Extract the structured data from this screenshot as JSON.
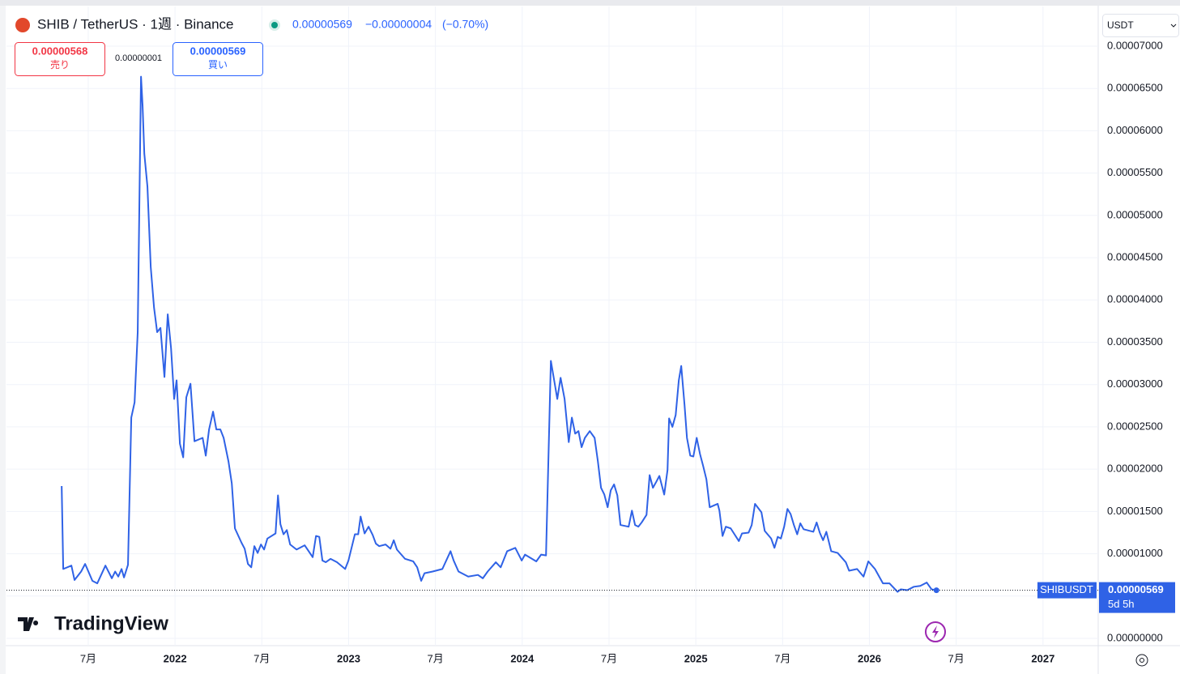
{
  "header": {
    "symbol": "SHIB / TetherUS · 1週 · Binance",
    "price": "0.00000569",
    "change": "−0.00000004",
    "change_pct": "(−0.70%)",
    "sell_price": "0.00000568",
    "sell": "売り",
    "spread": "0.00000001",
    "buy_price": "0.00000569",
    "buy": "買い",
    "currency": "USDT"
  },
  "price_label": {
    "symbol": "SHIBUSDT",
    "price": "0.00000569",
    "countdown": "5d 5h"
  },
  "logo": "TradingView",
  "chart_data": {
    "type": "line",
    "xlim": [
      2021.029,
      2027.318
    ],
    "xticks": [
      {
        "value": 2021.5,
        "label": "7月"
      },
      2022,
      {
        "value": 2022.5,
        "label": "7月"
      },
      2023,
      {
        "value": 2023.5,
        "label": "7月"
      },
      2024,
      {
        "value": 2024.5,
        "label": "7月"
      },
      2025,
      {
        "value": 2025.5,
        "label": "7月"
      },
      2026,
      {
        "value": 2026.5,
        "label": "7月"
      },
      2027
    ],
    "ylim": [
      -8.6e-07,
      7.469e-05
    ],
    "yticks": [
      {
        "value": 0,
        "label": "0.00000000"
      },
      {
        "value": 5e-06,
        "label": "0.00000500"
      },
      {
        "value": 1e-05,
        "label": "0.00001000"
      },
      {
        "value": 1.5e-05,
        "label": "0.00001500"
      },
      {
        "value": 2e-05,
        "label": "0.00002000"
      },
      {
        "value": 2.5e-05,
        "label": "0.00002500"
      },
      {
        "value": 3e-05,
        "label": "0.00003000"
      },
      {
        "value": 3.5e-05,
        "label": "0.00003500"
      },
      {
        "value": 4e-05,
        "label": "0.00004000"
      },
      {
        "value": 4.5e-05,
        "label": "0.00004500"
      },
      {
        "value": 5e-05,
        "label": "0.00005000"
      },
      {
        "value": 5.5e-05,
        "label": "0.00005500"
      },
      {
        "value": 6e-05,
        "label": "0.00006000"
      },
      {
        "value": 6.5e-05,
        "label": "0.00006500"
      },
      {
        "value": 7e-05,
        "label": "0.00007000"
      }
    ],
    "grid": true,
    "series": [
      {
        "name": "SHIBUSDT",
        "color": "#2f62e6",
        "x": [
          2021.347,
          2021.356,
          2021.403,
          2021.421,
          2021.459,
          2021.482,
          2021.524,
          2021.552,
          2021.599,
          2021.636,
          2021.655,
          2021.673,
          2021.692,
          2021.706,
          2021.729,
          2021.748,
          2021.767,
          2021.785,
          2021.804,
          2021.813,
          2021.823,
          2021.841,
          2021.86,
          2021.879,
          2021.897,
          2021.916,
          2021.939,
          2021.958,
          2021.977,
          2021.995,
          2022.009,
          2022.028,
          2022.047,
          2022.065,
          2022.089,
          2022.112,
          2022.159,
          2022.177,
          2022.196,
          2022.219,
          2022.238,
          2022.261,
          2022.28,
          2022.308,
          2022.327,
          2022.345,
          2022.383,
          2022.401,
          2022.42,
          2022.439,
          2022.457,
          2022.476,
          2022.495,
          2022.513,
          2022.532,
          2022.579,
          2022.593,
          2022.607,
          2022.625,
          2022.644,
          2022.663,
          2022.7,
          2022.747,
          2022.793,
          2022.812,
          2022.831,
          2022.849,
          2022.868,
          2022.896,
          2022.933,
          2022.98,
          2022.999,
          2023.036,
          2023.055,
          2023.069,
          2023.092,
          2023.115,
          2023.139,
          2023.157,
          2023.176,
          2023.213,
          2023.241,
          2023.26,
          2023.278,
          2023.325,
          2023.372,
          2023.395,
          2023.418,
          2023.437,
          2023.484,
          2023.54,
          2023.587,
          2023.605,
          2023.633,
          2023.689,
          2023.745,
          2023.773,
          2023.801,
          2023.848,
          2023.876,
          2023.913,
          2023.96,
          2023.997,
          2024.016,
          2024.081,
          2024.109,
          2024.137,
          2024.165,
          2024.184,
          2024.202,
          2024.221,
          2024.244,
          2024.268,
          2024.286,
          2024.305,
          2024.324,
          2024.342,
          2024.361,
          2024.389,
          2024.417,
          2024.436,
          2024.454,
          2024.473,
          2024.492,
          2024.51,
          2024.529,
          2024.548,
          2024.566,
          2024.613,
          2024.632,
          2024.65,
          2024.669,
          2024.688,
          2024.716,
          2024.734,
          2024.753,
          2024.772,
          2024.79,
          2024.818,
          2024.837,
          2024.846,
          2024.865,
          2024.884,
          2024.902,
          2024.916,
          2024.935,
          2024.949,
          2024.968,
          2024.986,
          2025.005,
          2025.024,
          2025.042,
          2025.061,
          2025.08,
          2025.126,
          2025.136,
          2025.154,
          2025.173,
          2025.201,
          2025.248,
          2025.266,
          2025.304,
          2025.322,
          2025.341,
          2025.378,
          2025.397,
          2025.434,
          2025.453,
          2025.472,
          2025.49,
          2025.509,
          2025.528,
          2025.546,
          2025.565,
          2025.584,
          2025.602,
          2025.621,
          2025.677,
          2025.696,
          2025.714,
          2025.733,
          2025.752,
          2025.78,
          2025.817,
          2025.864,
          2025.883,
          2025.929,
          2025.966,
          2025.994,
          2026.032,
          2026.078,
          2026.116,
          2026.162,
          2026.181,
          2026.218,
          2026.256,
          2026.293,
          2026.33,
          2026.358,
          2026.386
        ],
        "values": [
          1.8e-05,
          8.2e-06,
          8.6e-06,
          6.9e-06,
          7.9e-06,
          8.8e-06,
          6.8e-06,
          6.5e-06,
          8.6e-06,
          7.1e-06,
          7.9e-06,
          7.3e-06,
          8.2e-06,
          7.2e-06,
          8.7e-06,
          2.61e-05,
          2.79e-05,
          3.62e-05,
          6.64e-05,
          6.3e-05,
          5.73e-05,
          5.34e-05,
          4.39e-05,
          3.91e-05,
          3.62e-05,
          3.67e-05,
          3.09e-05,
          3.83e-05,
          3.43e-05,
          2.83e-05,
          3.05e-05,
          2.3e-05,
          2.14e-05,
          2.85e-05,
          3.01e-05,
          2.33e-05,
          2.37e-05,
          2.16e-05,
          2.47e-05,
          2.68e-05,
          2.47e-05,
          2.47e-05,
          2.37e-05,
          2.09e-05,
          1.83e-05,
          1.3e-05,
          1.13e-05,
          1.06e-05,
          8.8e-06,
          8.4e-06,
          1.09e-05,
          1.01e-05,
          1.11e-05,
          1.05e-05,
          1.18e-05,
          1.24e-05,
          1.69e-05,
          1.35e-05,
          1.23e-05,
          1.28e-05,
          1.11e-05,
          1.05e-05,
          1.1e-05,
          9.6e-06,
          1.21e-05,
          1.2e-05,
          9.2e-06,
          9e-06,
          9.4e-06,
          9e-06,
          8.2e-06,
          9.2e-06,
          1.23e-05,
          1.23e-05,
          1.44e-05,
          1.24e-05,
          1.32e-05,
          1.22e-05,
          1.12e-05,
          1.09e-05,
          1.11e-05,
          1.06e-05,
          1.16e-05,
          1.05e-05,
          9.4e-06,
          9.1e-06,
          8.4e-06,
          6.8e-06,
          7.7e-06,
          7.9e-06,
          8.2e-06,
          1.03e-05,
          9.2e-06,
          7.9e-06,
          7.3e-06,
          7.5e-06,
          7.1e-06,
          7.9e-06,
          9e-06,
          8.4e-06,
          1.03e-05,
          1.07e-05,
          9.2e-06,
          9.9e-06,
          9.1e-06,
          9.9e-06,
          9.8e-06,
          3.28e-05,
          3.05e-05,
          2.83e-05,
          3.08e-05,
          2.83e-05,
          2.32e-05,
          2.61e-05,
          2.42e-05,
          2.45e-05,
          2.26e-05,
          2.37e-05,
          2.45e-05,
          2.37e-05,
          2.09e-05,
          1.78e-05,
          1.7e-05,
          1.55e-05,
          1.75e-05,
          1.82e-05,
          1.69e-05,
          1.34e-05,
          1.32e-05,
          1.51e-05,
          1.34e-05,
          1.32e-05,
          1.37e-05,
          1.46e-05,
          1.93e-05,
          1.78e-05,
          1.85e-05,
          1.92e-05,
          1.7e-05,
          1.99e-05,
          2.6e-05,
          2.5e-05,
          2.64e-05,
          3.05e-05,
          3.22e-05,
          2.76e-05,
          2.37e-05,
          2.16e-05,
          2.15e-05,
          2.37e-05,
          2.18e-05,
          2.04e-05,
          1.88e-05,
          1.55e-05,
          1.59e-05,
          1.51e-05,
          1.21e-05,
          1.32e-05,
          1.3e-05,
          1.15e-05,
          1.24e-05,
          1.25e-05,
          1.34e-05,
          1.59e-05,
          1.49e-05,
          1.27e-05,
          1.18e-05,
          1.07e-05,
          1.2e-05,
          1.18e-05,
          1.32e-05,
          1.53e-05,
          1.47e-05,
          1.34e-05,
          1.23e-05,
          1.36e-05,
          1.29e-05,
          1.26e-05,
          1.37e-05,
          1.25e-05,
          1.16e-05,
          1.26e-05,
          1.03e-05,
          1.01e-05,
          9e-06,
          8e-06,
          8.2e-06,
          7.3e-06,
          9.1e-06,
          8.2e-06,
          6.5e-06,
          6.5e-06,
          5.5e-06,
          5.8e-06,
          5.7e-06,
          6.1e-06,
          6.2e-06,
          6.6e-06,
          5.8e-06,
          5.69e-06
        ]
      }
    ]
  }
}
